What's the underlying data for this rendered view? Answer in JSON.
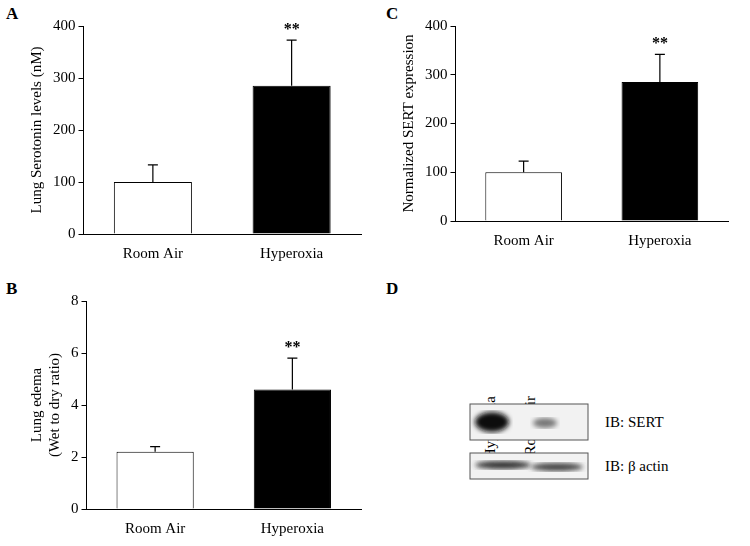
{
  "chart_data": [
    {
      "panel_label": "A",
      "type": "bar",
      "categories": [
        "Room Air",
        "Hyperoxia"
      ],
      "values": [
        100,
        285
      ],
      "error": [
        33,
        88
      ],
      "colors": [
        "#ffffff",
        "#000000"
      ],
      "y_label": "Lung Serotonin levels (nM)",
      "ylim": [
        0,
        400
      ],
      "yticks": [
        0,
        100,
        200,
        300,
        400
      ],
      "grid": false,
      "annotations": [
        {
          "category": "Hyperoxia",
          "text": "**"
        }
      ]
    },
    {
      "panel_label": "B",
      "type": "bar",
      "categories": [
        "Room Air",
        "Hyperoxia"
      ],
      "values": [
        2.2,
        4.6
      ],
      "error": [
        0.2,
        1.2
      ],
      "colors": [
        "#ffffff",
        "#000000"
      ],
      "y_label": [
        "Lung edema",
        "(Wet to dry ratio)"
      ],
      "ylim": [
        0,
        8
      ],
      "yticks": [
        0,
        2,
        4,
        6,
        8
      ],
      "grid": false,
      "annotations": [
        {
          "category": "Hyperoxia",
          "text": "**"
        }
      ]
    },
    {
      "panel_label": "C",
      "type": "bar",
      "categories": [
        "Room Air",
        "Hyperoxia"
      ],
      "values": [
        100,
        285
      ],
      "error": [
        23,
        57
      ],
      "colors": [
        "#ffffff",
        "#000000"
      ],
      "y_label": "Normalized SERT expression",
      "ylim": [
        0,
        400
      ],
      "yticks": [
        0,
        100,
        200,
        300,
        400
      ],
      "grid": false,
      "annotations": [
        {
          "category": "Hyperoxia",
          "text": "**"
        }
      ]
    }
  ],
  "blot": {
    "panel_label": "D",
    "lanes": [
      "Hyperoxia",
      "Room Air"
    ],
    "rows": [
      "IB: SERT",
      "IB: β actin"
    ]
  }
}
